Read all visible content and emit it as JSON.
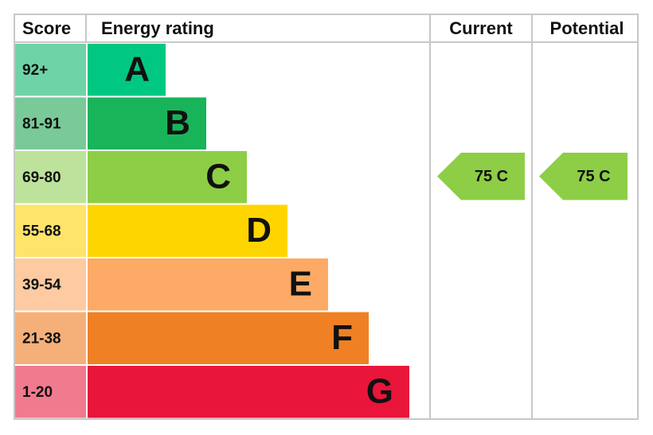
{
  "header": {
    "score": "Score",
    "rating": "Energy rating",
    "current": "Current",
    "potential": "Potential"
  },
  "bands": [
    {
      "score": "92+",
      "letter": "A",
      "color": "#00c781",
      "score_color": "#6fd3a8"
    },
    {
      "score": "81-91",
      "letter": "B",
      "color": "#19b459",
      "score_color": "#79c999"
    },
    {
      "score": "69-80",
      "letter": "C",
      "color": "#8dce46",
      "score_color": "#bde29c"
    },
    {
      "score": "55-68",
      "letter": "D",
      "color": "#ffd500",
      "score_color": "#ffe46b"
    },
    {
      "score": "39-54",
      "letter": "E",
      "color": "#fcaa65",
      "score_color": "#fdcaa1"
    },
    {
      "score": "21-38",
      "letter": "F",
      "color": "#ef8023",
      "score_color": "#f5b07a"
    },
    {
      "score": "1-20",
      "letter": "G",
      "color": "#e9153b",
      "score_color": "#f07a8e"
    }
  ],
  "current": "75 C",
  "potential": "75 C"
}
